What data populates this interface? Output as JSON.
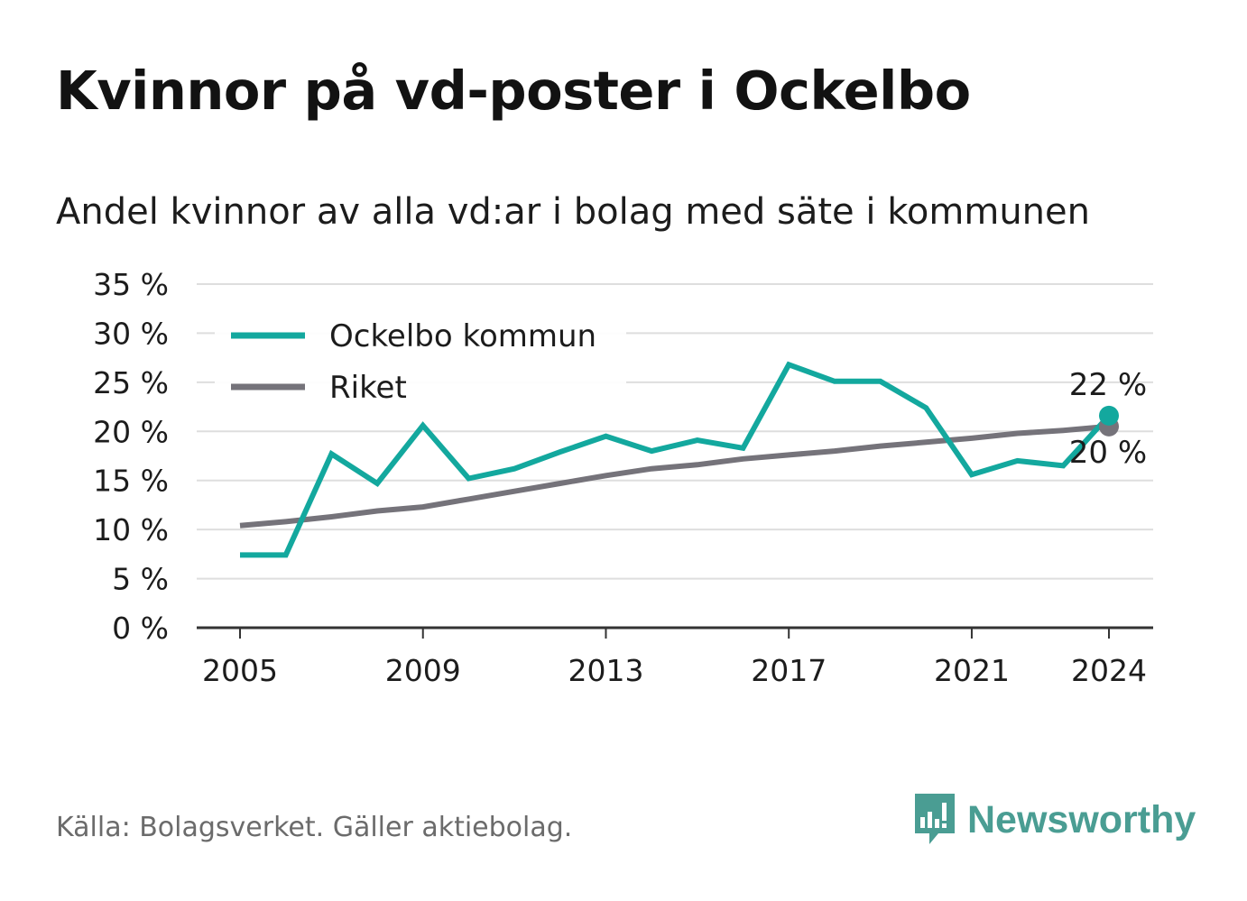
{
  "title": "Kvinnor på vd-poster i Ockelbo",
  "subtitle": "Andel kvinnor av alla vd:ar i bolag med säte i kommunen",
  "source": "Källa: Bolagsverket. Gäller aktiebolag.",
  "brand": "Newsworthy",
  "chart_data": {
    "type": "line",
    "title": "Kvinnor på vd-poster i Ockelbo",
    "subtitle": "Andel kvinnor av alla vd:ar i bolag med säte i kommunen",
    "x": [
      2005,
      2006,
      2007,
      2008,
      2009,
      2010,
      2011,
      2012,
      2013,
      2014,
      2015,
      2016,
      2017,
      2018,
      2019,
      2020,
      2021,
      2022,
      2023,
      2024
    ],
    "x_ticks": [
      2005,
      2009,
      2013,
      2017,
      2021,
      2024
    ],
    "x_tick_labels": [
      "2005",
      "2009",
      "2013",
      "2017",
      "2021",
      "2024"
    ],
    "y_ticks": [
      0,
      5,
      10,
      15,
      20,
      25,
      30,
      35
    ],
    "y_tick_labels": [
      "0 %",
      "5 %",
      "10 %",
      "15 %",
      "20 %",
      "25 %",
      "30 %",
      "35 %"
    ],
    "ylim": [
      0,
      35
    ],
    "xlim": [
      2004.0,
      2025.0
    ],
    "grid": "horizontal",
    "legend_position": "top-left",
    "series": [
      {
        "name": "Ockelbo kommun",
        "color": "#13a89e",
        "values": [
          7.4,
          7.4,
          17.7,
          14.7,
          20.6,
          15.2,
          16.2,
          17.9,
          19.5,
          18.0,
          19.1,
          18.3,
          26.8,
          25.1,
          25.1,
          22.4,
          15.6,
          17.0,
          16.5,
          21.6
        ],
        "end_label": "22 %"
      },
      {
        "name": "Riket",
        "color": "#75737a",
        "values": [
          10.4,
          10.8,
          11.3,
          11.9,
          12.3,
          13.1,
          13.9,
          14.7,
          15.5,
          16.2,
          16.6,
          17.2,
          17.6,
          18.0,
          18.5,
          18.9,
          19.3,
          19.8,
          20.1,
          20.5
        ],
        "end_label": "20 %"
      }
    ]
  }
}
